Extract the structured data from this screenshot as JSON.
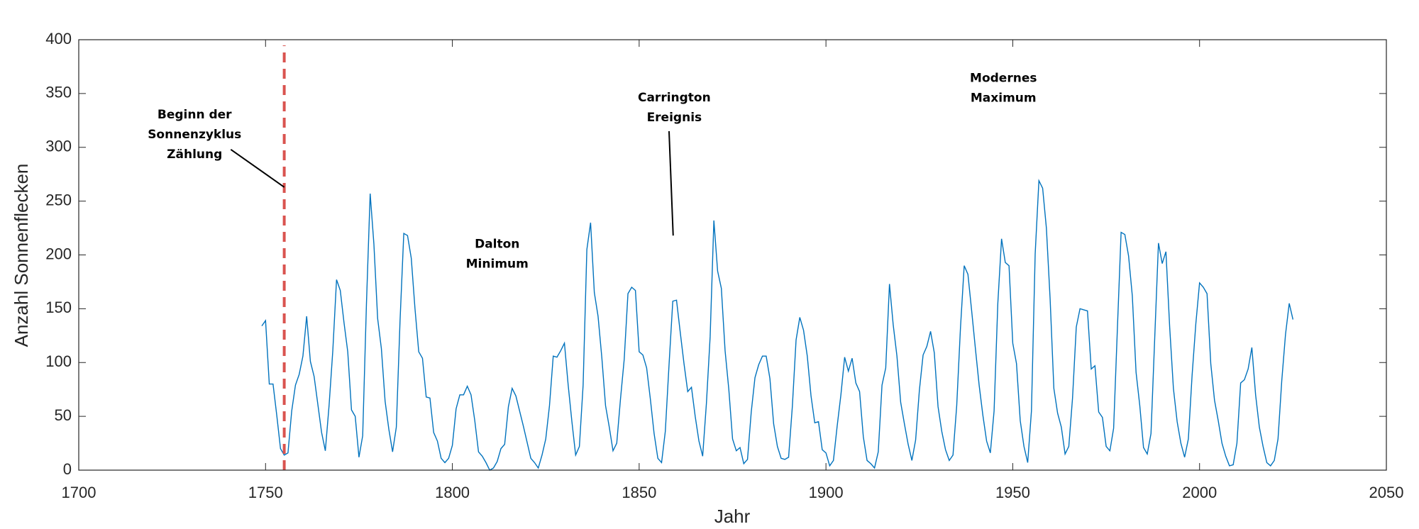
{
  "chart_data": {
    "type": "line",
    "xlabel": "Jahr",
    "ylabel": "Anzahl Sonnenflecken",
    "xlim": [
      1700,
      2050
    ],
    "xticks": [
      1700,
      1750,
      1800,
      1850,
      1900,
      1950,
      2000,
      2050
    ],
    "ylim": [
      0,
      400
    ],
    "yticks": [
      0,
      50,
      100,
      150,
      200,
      250,
      300,
      350,
      400
    ],
    "grid": false,
    "vline": {
      "x": 1755,
      "color": "#d9534f"
    },
    "annotations": [
      {
        "lines": [
          "Beginn der",
          "Sonnenzyklus",
          "Zählung"
        ]
      },
      {
        "lines": [
          "Dalton",
          "Minimum"
        ]
      },
      {
        "lines": [
          "Carrington",
          "Ereignis"
        ]
      },
      {
        "lines": [
          "Modernes",
          "Maximum"
        ]
      }
    ],
    "x": [
      1749,
      1750,
      1751,
      1752,
      1753,
      1754,
      1755,
      1756,
      1757,
      1758,
      1759,
      1760,
      1761,
      1762,
      1763,
      1764,
      1765,
      1766,
      1767,
      1768,
      1769,
      1770,
      1771,
      1772,
      1773,
      1774,
      1775,
      1776,
      1777,
      1778,
      1779,
      1780,
      1781,
      1782,
      1783,
      1784,
      1785,
      1786,
      1787,
      1788,
      1789,
      1790,
      1791,
      1792,
      1793,
      1794,
      1795,
      1796,
      1797,
      1798,
      1799,
      1800,
      1801,
      1802,
      1803,
      1804,
      1805,
      1806,
      1807,
      1808,
      1809,
      1810,
      1811,
      1812,
      1813,
      1814,
      1815,
      1816,
      1817,
      1818,
      1819,
      1820,
      1821,
      1822,
      1823,
      1824,
      1825,
      1826,
      1827,
      1828,
      1829,
      1830,
      1831,
      1832,
      1833,
      1834,
      1835,
      1836,
      1837,
      1838,
      1839,
      1840,
      1841,
      1842,
      1843,
      1844,
      1845,
      1846,
      1847,
      1848,
      1849,
      1850,
      1851,
      1852,
      1853,
      1854,
      1855,
      1856,
      1857,
      1858,
      1859,
      1860,
      1861,
      1862,
      1863,
      1864,
      1865,
      1866,
      1867,
      1868,
      1869,
      1870,
      1871,
      1872,
      1873,
      1874,
      1875,
      1876,
      1877,
      1878,
      1879,
      1880,
      1881,
      1882,
      1883,
      1884,
      1885,
      1886,
      1887,
      1888,
      1889,
      1890,
      1891,
      1892,
      1893,
      1894,
      1895,
      1896,
      1897,
      1898,
      1899,
      1900,
      1901,
      1902,
      1903,
      1904,
      1905,
      1906,
      1907,
      1908,
      1909,
      1910,
      1911,
      1912,
      1913,
      1914,
      1915,
      1916,
      1917,
      1918,
      1919,
      1920,
      1921,
      1922,
      1923,
      1924,
      1925,
      1926,
      1927,
      1928,
      1929,
      1930,
      1931,
      1932,
      1933,
      1934,
      1935,
      1936,
      1937,
      1938,
      1939,
      1940,
      1941,
      1942,
      1943,
      1944,
      1945,
      1946,
      1947,
      1948,
      1949,
      1950,
      1951,
      1952,
      1953,
      1954,
      1955,
      1956,
      1957,
      1958,
      1959,
      1960,
      1961,
      1962,
      1963,
      1964,
      1965,
      1966,
      1967,
      1968,
      1969,
      1970,
      1971,
      1972,
      1973,
      1974,
      1975,
      1976,
      1977,
      1978,
      1979,
      1980,
      1981,
      1982,
      1983,
      1984,
      1985,
      1986,
      1987,
      1988,
      1989,
      1990,
      1991,
      1992,
      1993,
      1994,
      1995,
      1996,
      1997,
      1998,
      1999,
      2000,
      2001,
      2002,
      2003,
      2004,
      2005,
      2006,
      2007,
      2008,
      2009,
      2010,
      2011,
      2012,
      2013,
      2014,
      2015,
      2016,
      2017,
      2018,
      2019,
      2020,
      2021,
      2022,
      2023,
      2024,
      2025
    ],
    "series": [
      {
        "name": "Sonnenflecken",
        "color": "#0072bd",
        "values": [
          134,
          139,
          80,
          80,
          51,
          20,
          14,
          16,
          55,
          79,
          89,
          106,
          143,
          101,
          87,
          61,
          35,
          18,
          60,
          111,
          177,
          167,
          137,
          110,
          56,
          50,
          12,
          32,
          154,
          257,
          210,
          141,
          113,
          64,
          38,
          17,
          40,
          139,
          220,
          218,
          197,
          150,
          110,
          104,
          68,
          67,
          35,
          27,
          11,
          7,
          11,
          23,
          57,
          70,
          70,
          78,
          70,
          46,
          17,
          13,
          7,
          0,
          2,
          8,
          20,
          24,
          59,
          76,
          69,
          55,
          41,
          26,
          11,
          7,
          2,
          14,
          29,
          60,
          106,
          105,
          111,
          118,
          79,
          45,
          14,
          22,
          79,
          205,
          230,
          165,
          143,
          105,
          60,
          40,
          18,
          25,
          66,
          103,
          164,
          170,
          167,
          110,
          107,
          95,
          66,
          34,
          11,
          7,
          36,
          98,
          157,
          158,
          128,
          99,
          73,
          77,
          50,
          27,
          13,
          62,
          124,
          232,
          185,
          169,
          111,
          75,
          29,
          18,
          21,
          6,
          10,
          54,
          86,
          98,
          106,
          106,
          85,
          43,
          22,
          11,
          10,
          12,
          59,
          121,
          142,
          130,
          106,
          69,
          44,
          45,
          19,
          16,
          4,
          9,
          41,
          70,
          105,
          92,
          104,
          81,
          73,
          31,
          9,
          6,
          2,
          17,
          79,
          95,
          173,
          135,
          106,
          63,
          43,
          24,
          9,
          28,
          74,
          107,
          115,
          129,
          109,
          59,
          36,
          19,
          9,
          14,
          60,
          132,
          190,
          182,
          148,
          113,
          79,
          51,
          27,
          16,
          55,
          155,
          215,
          193,
          190,
          118,
          99,
          46,
          22,
          7,
          55,
          201,
          269,
          262,
          225,
          159,
          76,
          53,
          40,
          15,
          22,
          67,
          133,
          150,
          149,
          148,
          94,
          97,
          54,
          49,
          22,
          18,
          39,
          131,
          221,
          219,
          199,
          162,
          91,
          60,
          21,
          15,
          34,
          123,
          211,
          192,
          203,
          133,
          76,
          45,
          25,
          12,
          29,
          88,
          136,
          174,
          170,
          164,
          99,
          65,
          46,
          25,
          13,
          4,
          5,
          25,
          81,
          84,
          94,
          114,
          70,
          40,
          22,
          7,
          4,
          9,
          29,
          83,
          126,
          155,
          140
        ]
      }
    ]
  }
}
